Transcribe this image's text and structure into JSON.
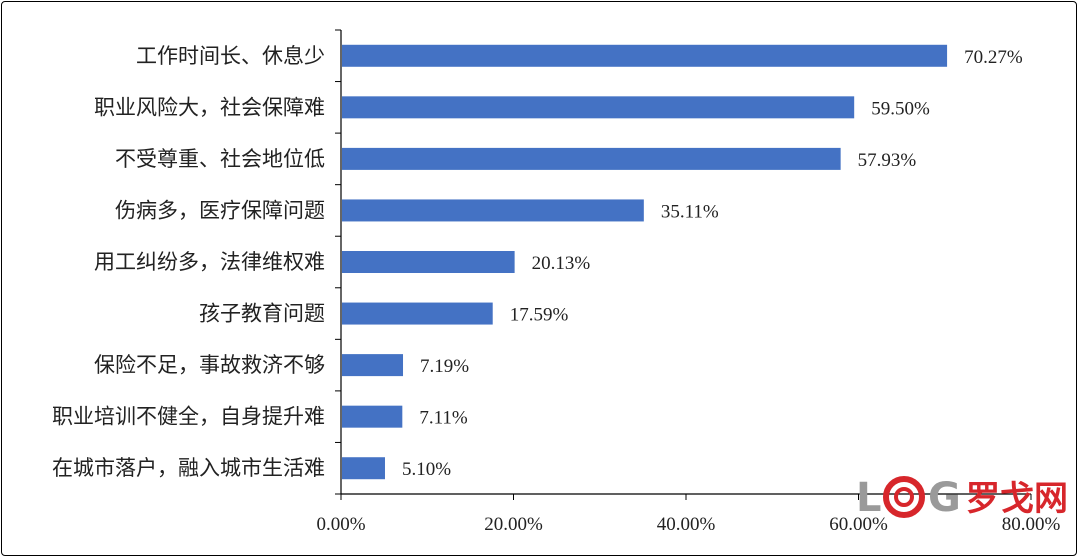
{
  "chart_data": {
    "type": "bar",
    "orientation": "horizontal",
    "categories": [
      "工作时间长、休息少",
      "职业风险大，社会保障难",
      "不受尊重、社会地位低",
      "伤病多，医疗保障问题",
      "用工纠纷多，法律维权难",
      "孩子教育问题",
      "保险不足，事故救济不够",
      "职业培训不健全，自身提升难",
      "在城市落户，融入城市生活难"
    ],
    "values": [
      70.27,
      59.5,
      57.93,
      35.11,
      20.13,
      17.59,
      7.19,
      7.11,
      5.1
    ],
    "value_labels": [
      "70.27%",
      "59.50%",
      "57.93%",
      "35.11%",
      "20.13%",
      "17.59%",
      "7.19%",
      "7.11%",
      "5.10%"
    ],
    "xlim": [
      0,
      80
    ],
    "x_ticks": [
      0,
      20,
      40,
      60,
      80
    ],
    "x_tick_labels": [
      "0.00%",
      "20.00%",
      "40.00%",
      "60.00%",
      "80.00%"
    ],
    "bar_color": "#4472C4",
    "grid": false,
    "title": "",
    "xlabel": "",
    "ylabel": ""
  },
  "watermark": {
    "text": "罗戈网",
    "letters": "LOG",
    "color_red": "#D7262B",
    "color_gray": "#9A9A9A"
  }
}
